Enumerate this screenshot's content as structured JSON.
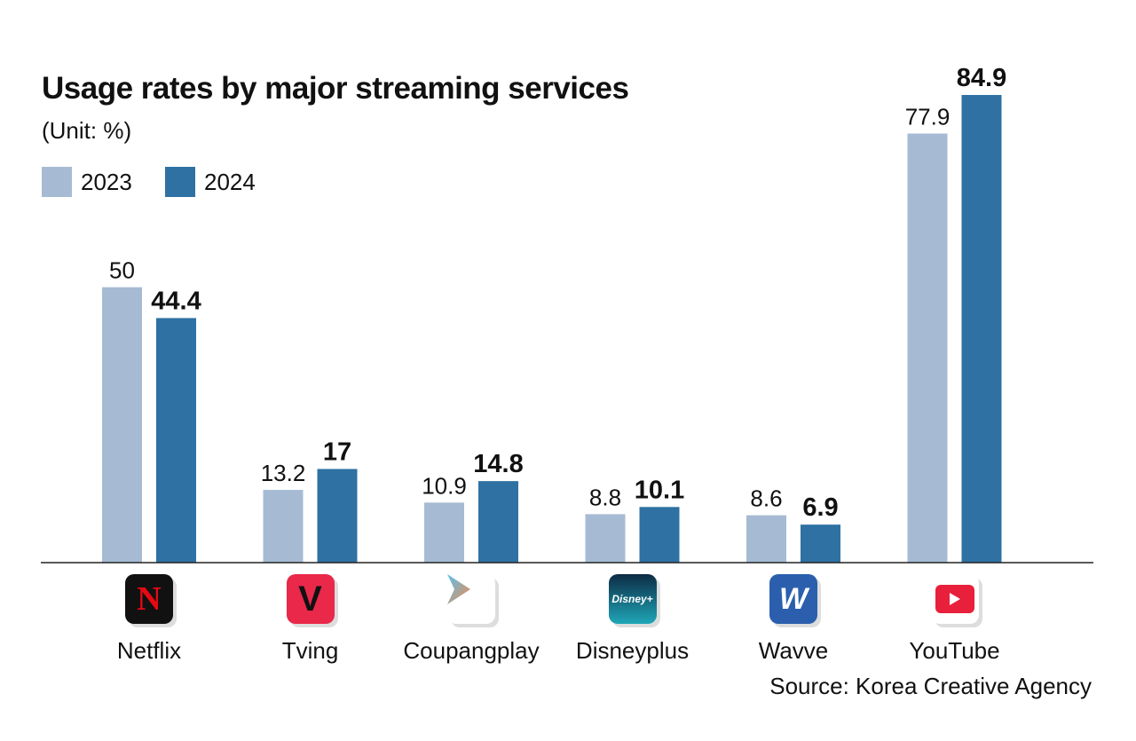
{
  "chart_data": {
    "type": "bar",
    "title": "Usage rates by major streaming services",
    "subtitle": "(Unit: %)",
    "categories": [
      "Netflix",
      "Tving",
      "Coupangplay",
      "Disneyplus",
      "Wavve",
      "YouTube"
    ],
    "series": [
      {
        "name": "2023",
        "color": "#a6bbd3",
        "values": [
          50,
          13.2,
          10.9,
          8.8,
          8.6,
          77.9
        ],
        "labels": [
          "50",
          "13.2",
          "10.9",
          "8.8",
          "8.6",
          "77.9"
        ]
      },
      {
        "name": "2024",
        "color": "#2e71a2",
        "values": [
          44.4,
          17,
          14.8,
          10.1,
          6.9,
          84.9
        ],
        "labels": [
          "44.4",
          "17",
          "14.8",
          "10.1",
          "6.9",
          "84.9"
        ]
      }
    ],
    "ylim": [
      0,
      85
    ],
    "grid": false,
    "legend": "top-left",
    "source": "Source: Korea Creative Agency",
    "icons": [
      "netflix-logo",
      "tving-logo",
      "coupangplay-logo",
      "disneyplus-logo",
      "wavve-logo",
      "youtube-logo"
    ]
  }
}
